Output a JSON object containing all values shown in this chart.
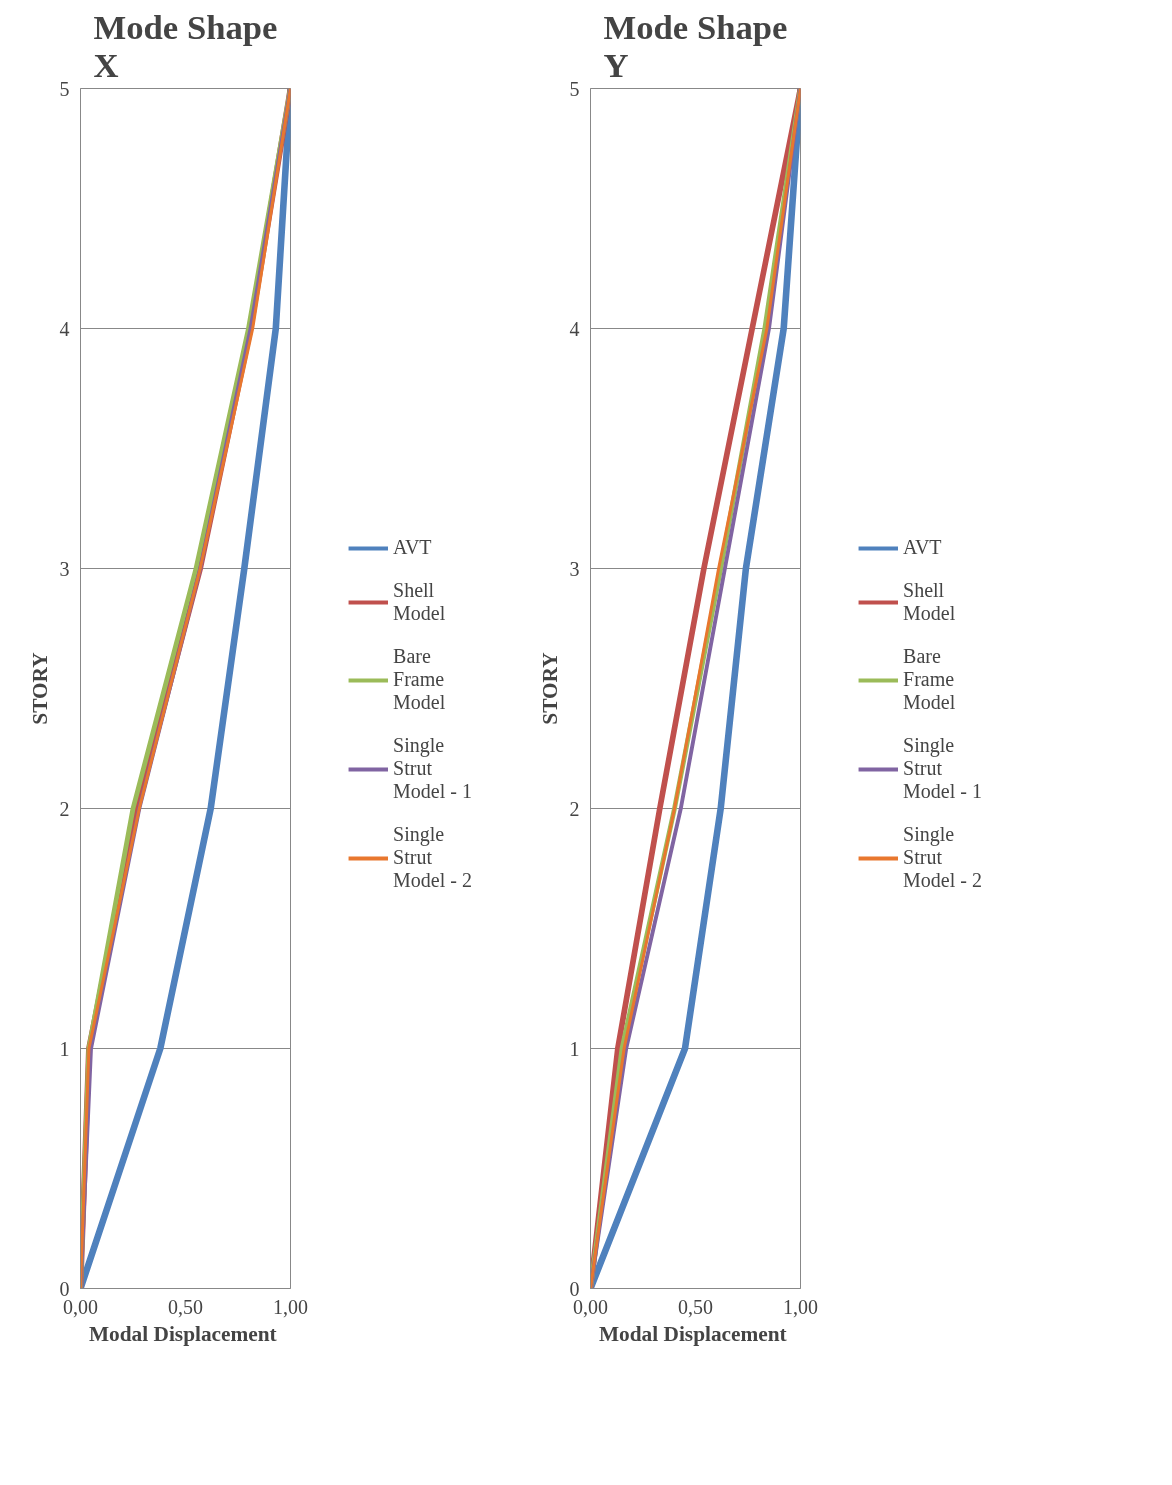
{
  "chart_data": [
    {
      "type": "line",
      "title": "Mode Shape\nX",
      "xlabel": "Modal  Displacement",
      "ylabel": "STORY",
      "xlim": [
        0,
        1
      ],
      "xticks": [
        {
          "value": 0,
          "label": "0,00"
        },
        {
          "value": 0.5,
          "label": "0,50"
        },
        {
          "value": 1,
          "label": "1,00"
        }
      ],
      "ylim": [
        0,
        5
      ],
      "yticks": [
        0,
        1,
        2,
        3,
        4,
        5
      ],
      "grid": "y",
      "legend": "right",
      "marker": "none",
      "line_style": "solid",
      "series": [
        {
          "name": "AVT",
          "color": "#4f81bd",
          "x": [
            0,
            0.38,
            0.62,
            0.78,
            0.93,
            1.0
          ],
          "values": [
            0,
            1,
            2,
            3,
            4,
            5
          ]
        },
        {
          "name": "Shell Model",
          "color": "#c0504d",
          "x": [
            0,
            0.04,
            0.27,
            0.57,
            0.81,
            1.0
          ],
          "values": [
            0,
            1,
            2,
            3,
            4,
            5
          ]
        },
        {
          "name": "Bare Frame Model",
          "color": "#9bbb59",
          "x": [
            0,
            0.04,
            0.25,
            0.55,
            0.8,
            1.0
          ],
          "values": [
            0,
            1,
            2,
            3,
            4,
            5
          ]
        },
        {
          "name": "Single Strut Model - 1",
          "color": "#8064a2",
          "x": [
            0,
            0.05,
            0.28,
            0.57,
            0.81,
            1.0
          ],
          "values": [
            0,
            1,
            2,
            3,
            4,
            5
          ]
        },
        {
          "name": "Single Strut Model - 2",
          "color": "#e8772e",
          "x": [
            0,
            0.04,
            0.28,
            0.57,
            0.82,
            1.0
          ],
          "values": [
            0,
            1,
            2,
            3,
            4,
            5
          ]
        }
      ]
    },
    {
      "type": "line",
      "title": "Mode Shape\nY",
      "xlabel": "Modal  Displacement",
      "ylabel": "STORY",
      "xlim": [
        0,
        1
      ],
      "xticks": [
        {
          "value": 0,
          "label": "0,00"
        },
        {
          "value": 0.5,
          "label": "0,50"
        },
        {
          "value": 1,
          "label": "1,00"
        }
      ],
      "ylim": [
        0,
        5
      ],
      "yticks": [
        0,
        1,
        2,
        3,
        4,
        5
      ],
      "grid": "y",
      "legend": "right",
      "marker": "none",
      "line_style": "solid",
      "series": [
        {
          "name": "AVT",
          "color": "#4f81bd",
          "x": [
            0,
            0.45,
            0.62,
            0.74,
            0.92,
            1.0
          ],
          "values": [
            0,
            1,
            2,
            3,
            4,
            5
          ]
        },
        {
          "name": "Shell Model",
          "color": "#c0504d",
          "x": [
            0,
            0.13,
            0.33,
            0.54,
            0.77,
            1.0
          ],
          "values": [
            0,
            1,
            2,
            3,
            4,
            5
          ]
        },
        {
          "name": "Bare Frame Model",
          "color": "#9bbb59",
          "x": [
            0,
            0.15,
            0.4,
            0.62,
            0.83,
            1.0
          ],
          "values": [
            0,
            1,
            2,
            3,
            4,
            5
          ]
        },
        {
          "name": "Single Strut Model - 1",
          "color": "#8064a2",
          "x": [
            0,
            0.17,
            0.43,
            0.64,
            0.85,
            1.0
          ],
          "values": [
            0,
            1,
            2,
            3,
            4,
            5
          ]
        },
        {
          "name": "Single Strut Model - 2",
          "color": "#e8772e",
          "x": [
            0,
            0.16,
            0.4,
            0.61,
            0.84,
            1.0
          ],
          "values": [
            0,
            1,
            2,
            3,
            4,
            5
          ]
        }
      ]
    }
  ]
}
